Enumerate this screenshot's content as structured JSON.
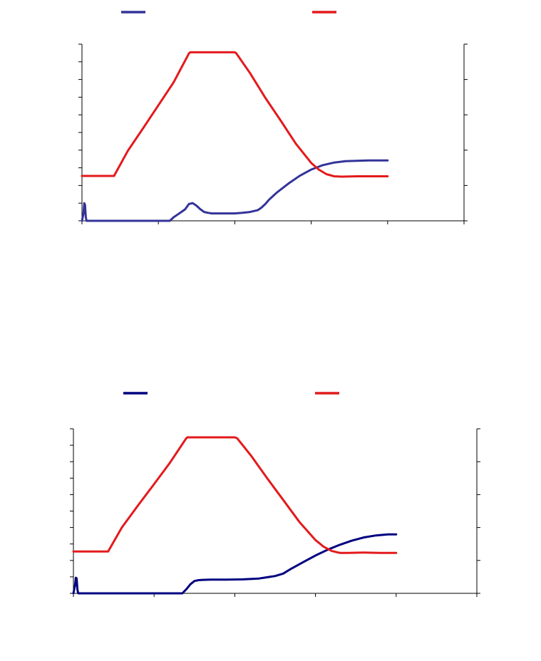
{
  "chart_data": [
    {
      "type": "line",
      "legend": {
        "placement": "top"
      },
      "grid": false,
      "xlim": [
        0,
        5
      ],
      "x_ticks": [
        0,
        1,
        2,
        3,
        4,
        5
      ],
      "ylim_left": [
        0,
        10
      ],
      "y_ticks_left": [
        0,
        1,
        2,
        3,
        4,
        5,
        6,
        7,
        8,
        9,
        10
      ],
      "ylim_right": [
        0,
        5
      ],
      "y_ticks_right": [
        0,
        1,
        2,
        3,
        4,
        5
      ],
      "series": [
        {
          "axis": "left",
          "color": "#333399",
          "x": [
            0,
            0.02,
            0.03,
            0.04,
            0.05,
            0.06,
            1.15,
            1.2,
            1.25,
            1.3,
            1.35,
            1.4,
            1.45,
            1.5,
            1.55,
            1.6,
            1.65,
            1.7,
            1.8,
            1.9,
            2.0,
            2.1,
            2.2,
            2.3,
            2.35,
            2.4,
            2.45,
            2.55,
            2.7,
            2.85,
            3.0,
            3.15,
            3.3,
            3.45,
            3.6,
            3.75,
            4.0
          ],
          "y": [
            0,
            0.4,
            1.0,
            0.9,
            0.2,
            0,
            0,
            0.2,
            0.35,
            0.5,
            0.65,
            0.95,
            1.0,
            0.85,
            0.65,
            0.5,
            0.45,
            0.42,
            0.42,
            0.42,
            0.42,
            0.45,
            0.5,
            0.6,
            0.75,
            0.95,
            1.2,
            1.6,
            2.1,
            2.55,
            2.9,
            3.15,
            3.3,
            3.38,
            3.4,
            3.42,
            3.42
          ]
        },
        {
          "axis": "right",
          "color": "#e31a1c",
          "x": [
            0,
            0.42,
            0.6,
            0.8,
            1.0,
            1.2,
            1.4,
            1.42,
            2.0,
            2.02,
            2.2,
            2.4,
            2.6,
            2.8,
            3.0,
            3.1,
            3.2,
            3.3,
            3.4,
            3.6,
            3.8,
            4.0
          ],
          "y": [
            1.27,
            1.27,
            1.98,
            2.62,
            3.27,
            3.92,
            4.74,
            4.77,
            4.77,
            4.74,
            4.18,
            3.48,
            2.84,
            2.18,
            1.64,
            1.45,
            1.32,
            1.26,
            1.25,
            1.26,
            1.26,
            1.26
          ]
        }
      ]
    },
    {
      "type": "line",
      "legend": {
        "placement": "top"
      },
      "grid": false,
      "xlim": [
        0,
        5
      ],
      "x_ticks": [
        0,
        1,
        2,
        3,
        4,
        5
      ],
      "ylim_left": [
        0,
        10
      ],
      "y_ticks_left": [
        0,
        1,
        2,
        3,
        4,
        5,
        6,
        7,
        8,
        9,
        10
      ],
      "ylim_right": [
        0,
        5
      ],
      "y_ticks_right": [
        0,
        1,
        2,
        3,
        4,
        5
      ],
      "series": [
        {
          "axis": "left",
          "color": "#000080",
          "x": [
            0,
            0.02,
            0.03,
            0.04,
            0.05,
            0.06,
            1.35,
            1.4,
            1.45,
            1.5,
            1.55,
            1.6,
            1.7,
            1.9,
            2.1,
            2.3,
            2.5,
            2.6,
            2.7,
            2.85,
            3.0,
            3.15,
            3.3,
            3.45,
            3.6,
            3.75,
            3.9,
            4.0
          ],
          "y": [
            0,
            0.5,
            0.95,
            0.9,
            0.2,
            0,
            0,
            0.25,
            0.55,
            0.75,
            0.8,
            0.82,
            0.83,
            0.83,
            0.85,
            0.9,
            1.05,
            1.2,
            1.5,
            1.9,
            2.3,
            2.65,
            2.95,
            3.2,
            3.4,
            3.52,
            3.58,
            3.58
          ]
        },
        {
          "axis": "right",
          "color": "#e31a1c",
          "x": [
            0,
            0.43,
            0.6,
            0.8,
            1.0,
            1.2,
            1.39,
            1.41,
            2.0,
            2.03,
            2.2,
            2.4,
            2.6,
            2.8,
            3.0,
            3.1,
            3.2,
            3.3,
            3.4,
            3.6,
            3.8,
            4.0
          ],
          "y": [
            1.27,
            1.27,
            2.0,
            2.67,
            3.32,
            3.98,
            4.68,
            4.74,
            4.74,
            4.71,
            4.19,
            3.5,
            2.84,
            2.17,
            1.62,
            1.42,
            1.29,
            1.23,
            1.23,
            1.24,
            1.23,
            1.23
          ]
        }
      ]
    }
  ]
}
